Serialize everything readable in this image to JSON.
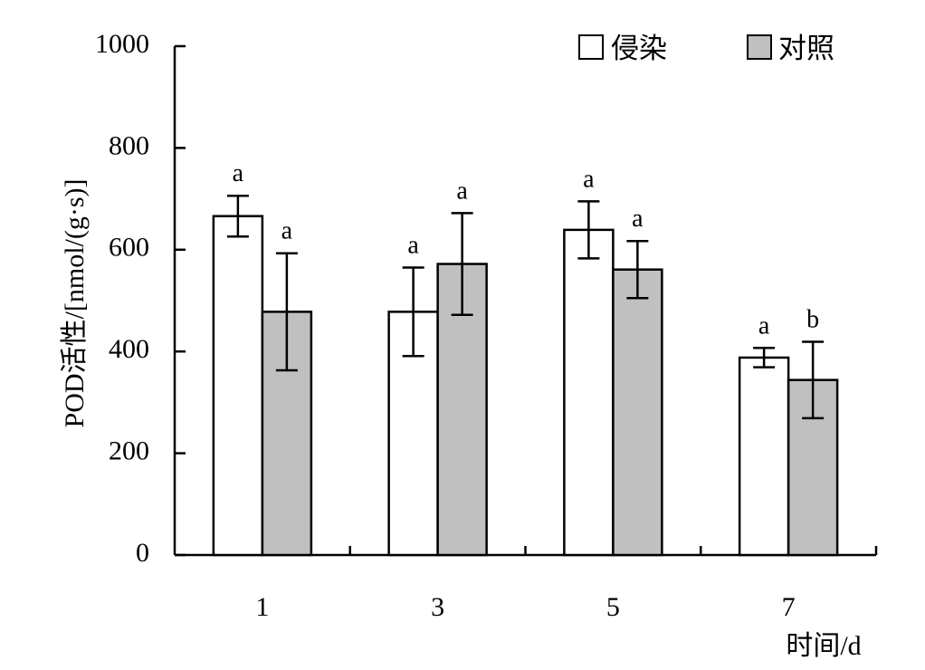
{
  "chart_data": {
    "type": "bar",
    "title": "",
    "xlabel": "时间/d",
    "ylabel": "POD活性/[nmol/(g·s)]",
    "ylim": [
      0,
      1000
    ],
    "yticks": [
      0,
      200,
      400,
      600,
      800,
      1000
    ],
    "categories": [
      "1",
      "3",
      "5",
      "7"
    ],
    "grid": false,
    "legend_position": "top-right",
    "series": [
      {
        "name": "侵染",
        "color": "#ffffff",
        "values": [
          666,
          478,
          639,
          388
        ],
        "errors": [
          40,
          87,
          56,
          19
        ],
        "significance": [
          "a",
          "a",
          "a",
          "a"
        ]
      },
      {
        "name": "对照",
        "color": "#c0c0c0",
        "values": [
          478,
          572,
          561,
          344
        ],
        "errors": [
          115,
          100,
          56,
          75
        ],
        "significance": [
          "a",
          "a",
          "a",
          "b"
        ]
      }
    ]
  }
}
